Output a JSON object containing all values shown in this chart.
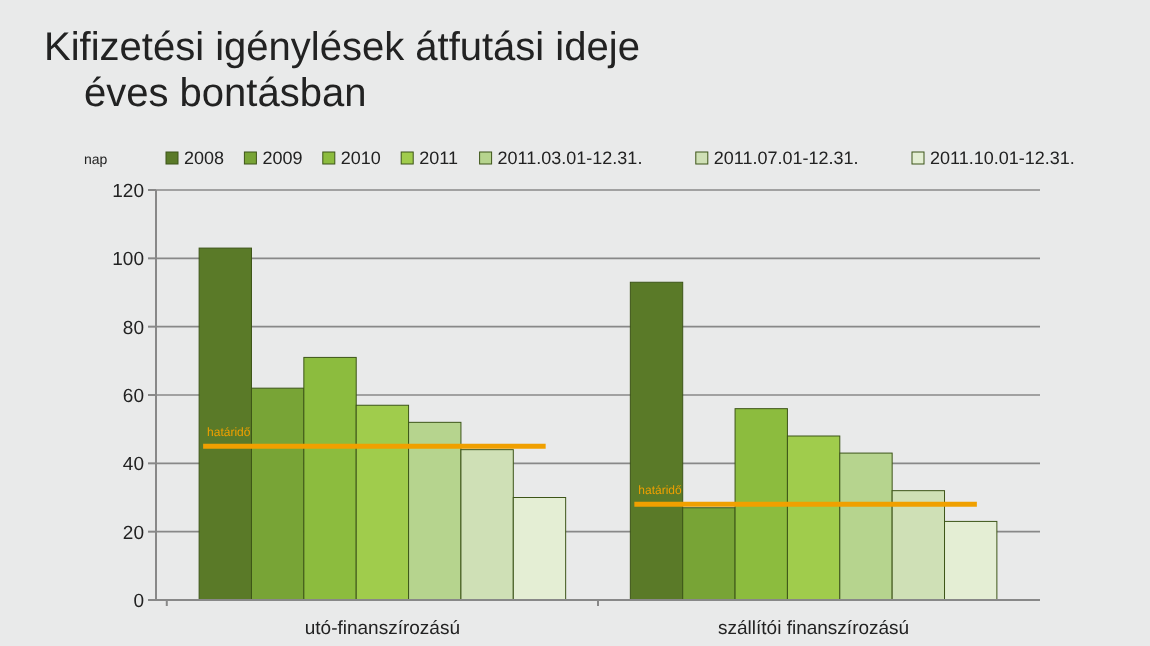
{
  "chart_data": {
    "type": "bar",
    "title": "Kifizetési igénylések átfutási ideje\néves bontásban",
    "ylabel": "nap",
    "categories": [
      "utó-finanszírozású",
      "szállítói finanszírozású"
    ],
    "series": [
      {
        "name": "2008",
        "color": "#5a7a28",
        "values": [
          103,
          93
        ]
      },
      {
        "name": "2009",
        "color": "#78a436",
        "values": [
          62,
          27
        ]
      },
      {
        "name": "2010",
        "color": "#8cbc3e",
        "values": [
          71,
          56
        ]
      },
      {
        "name": "2011",
        "color": "#a0cc4c",
        "values": [
          57,
          48
        ]
      },
      {
        "name": "2011.03.01-12.31.",
        "color": "#b6d48e",
        "values": [
          52,
          43
        ]
      },
      {
        "name": "2011.07.01-12.31.",
        "color": "#cfe0b6",
        "values": [
          44,
          32
        ]
      },
      {
        "name": "2011.10.01-12.31.",
        "color": "#e4eed4",
        "values": [
          30,
          23
        ]
      }
    ],
    "ylim": [
      0,
      120
    ],
    "yticks": [
      0,
      20,
      40,
      60,
      80,
      100,
      120
    ],
    "grid": "y",
    "legend": "top",
    "ref_lines": [
      {
        "axis": "y",
        "value": 45,
        "label": "határidő",
        "color": "#f0a000"
      },
      {
        "axis": "y",
        "value": 28,
        "label": "határidő",
        "color": "#f0a000"
      }
    ]
  }
}
